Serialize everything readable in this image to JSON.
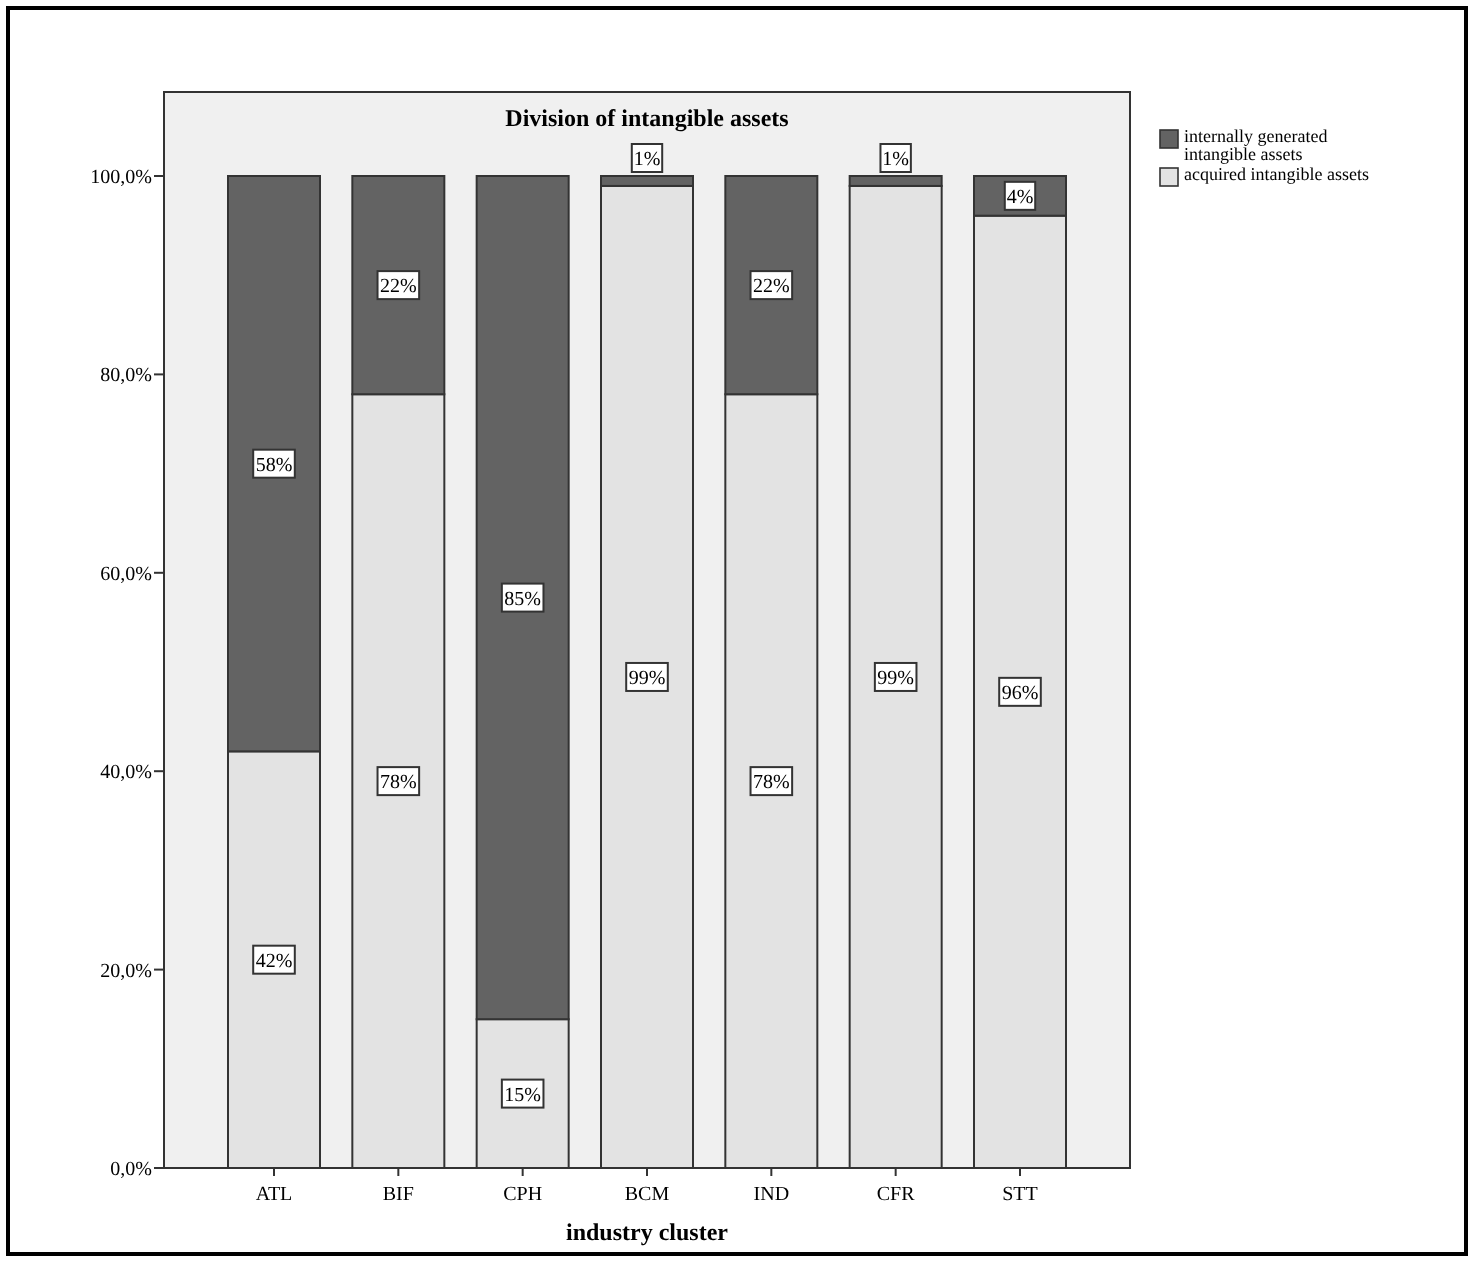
{
  "chart_data": {
    "type": "bar",
    "title": "Division of intangible assets",
    "xlabel": "industry cluster",
    "categories": [
      "ATL",
      "BIF",
      "CPH",
      "BCM",
      "IND",
      "CFR",
      "STT"
    ],
    "stacked": true,
    "series": [
      {
        "name": "acquired intangible assets",
        "color": "#e3e3e3",
        "values": [
          42,
          78,
          15,
          99,
          78,
          99,
          96
        ],
        "value_labels": [
          "42%",
          "78%",
          "15%",
          "99%",
          "78%",
          "99%",
          "96%"
        ]
      },
      {
        "name": "internally generated intangible assets",
        "color": "#636363",
        "values": [
          58,
          22,
          85,
          1,
          22,
          1,
          4
        ],
        "value_labels": [
          "58%",
          "22%",
          "85%",
          "1%",
          "22%",
          "1%",
          "4%"
        ]
      }
    ],
    "ylim": [
      0,
      100
    ],
    "yticks": [
      {
        "value": 0,
        "label": "0,0%"
      },
      {
        "value": 20,
        "label": "20,0%"
      },
      {
        "value": 40,
        "label": "40,0%"
      },
      {
        "value": 60,
        "label": "60,0%"
      },
      {
        "value": 80,
        "label": "80,0%"
      },
      {
        "value": 100,
        "label": "100,0%"
      }
    ],
    "legend": "top right"
  }
}
